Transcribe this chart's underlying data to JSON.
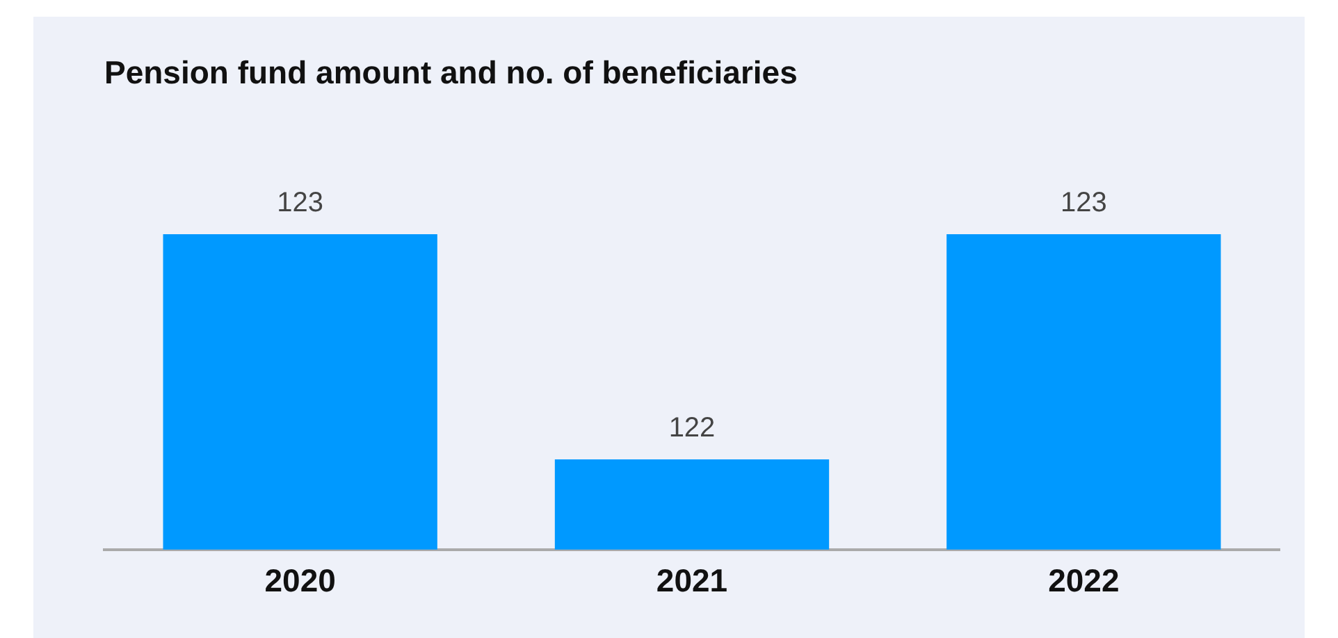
{
  "chart_data": {
    "type": "bar",
    "title": "Pension fund amount and no. of beneficiaries",
    "categories": [
      "2020",
      "2021",
      "2022"
    ],
    "values": [
      123,
      122,
      123
    ],
    "color": "#0099ff",
    "data_labels": true
  }
}
